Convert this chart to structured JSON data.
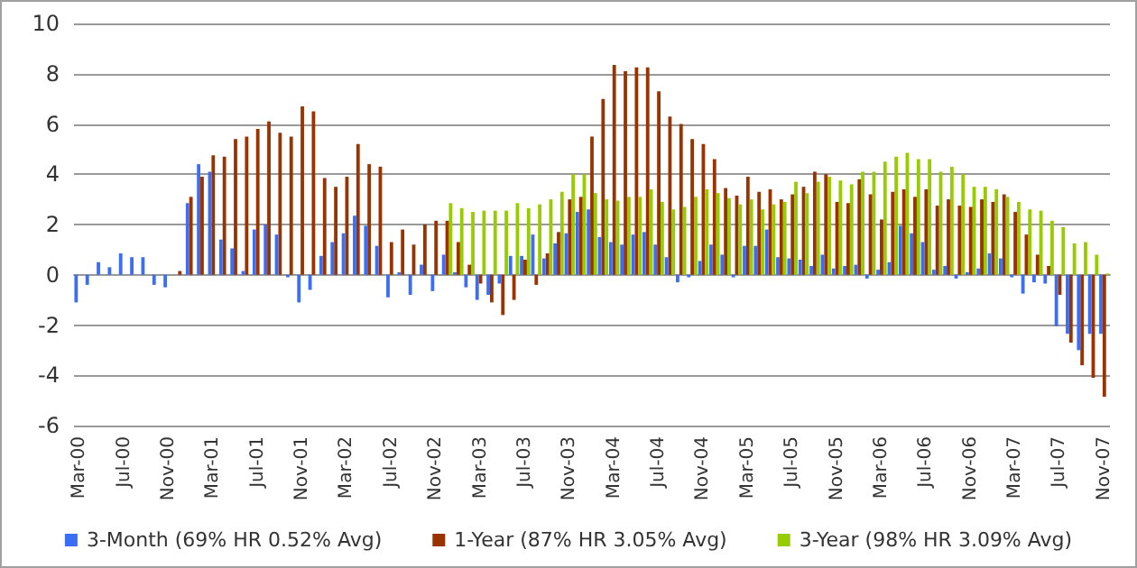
{
  "chart_data": {
    "type": "bar",
    "categories": [
      "Mar-00",
      null,
      null,
      null,
      "Jul-00",
      null,
      null,
      null,
      "Nov-00",
      null,
      null,
      null,
      "Mar-01",
      null,
      null,
      null,
      "Jul-01",
      null,
      null,
      null,
      "Nov-01",
      null,
      null,
      null,
      "Mar-02",
      null,
      null,
      null,
      "Jul-02",
      null,
      null,
      null,
      "Nov-02",
      null,
      null,
      null,
      "Mar-03",
      null,
      null,
      null,
      "Jul-03",
      null,
      null,
      null,
      "Nov-03",
      null,
      null,
      null,
      "Mar-04",
      null,
      null,
      null,
      "Jul-04",
      null,
      null,
      null,
      "Nov-04",
      null,
      null,
      null,
      "Mar-05",
      null,
      null,
      null,
      "Jul-05",
      null,
      null,
      null,
      "Nov-05",
      null,
      null,
      null,
      "Mar-06",
      null,
      null,
      null,
      "Jul-06",
      null,
      null,
      null,
      "Nov-06",
      null,
      null,
      null,
      "Mar-07",
      null,
      null,
      null,
      "Jul-07",
      null,
      null,
      null,
      "Nov-07"
    ],
    "series": [
      {
        "name": "3-Month (69% HR 0.52% Avg)",
        "color": "#3b6ef5",
        "values": [
          -1.1,
          -0.4,
          0.5,
          0.3,
          0.85,
          0.7,
          0.7,
          -0.4,
          -0.5,
          0,
          2.85,
          4.4,
          4.1,
          1.4,
          1.05,
          0.15,
          1.8,
          2.0,
          1.6,
          -0.1,
          -1.1,
          -0.6,
          0.75,
          1.3,
          1.65,
          2.35,
          1.95,
          1.15,
          -0.9,
          0.1,
          -0.8,
          0.4,
          -0.65,
          0.8,
          0.1,
          -0.5,
          -1.0,
          -0.8,
          -0.35,
          0.75,
          0.75,
          1.6,
          0.65,
          1.25,
          1.65,
          2.5,
          2.6,
          1.5,
          1.3,
          1.2,
          1.6,
          1.7,
          1.2,
          0.7,
          -0.3,
          -0.1,
          0.55,
          1.2,
          0.8,
          -0.1,
          1.15,
          1.15,
          1.8,
          0.7,
          0.65,
          0.6,
          0.35,
          0.8,
          0.25,
          0.35,
          0.4,
          -0.15,
          0.2,
          0.5,
          1.95,
          1.65,
          1.3,
          0.2,
          0.35,
          -0.15,
          0.1,
          0.25,
          0.85,
          0.65,
          -0.1,
          -0.75,
          -0.3,
          -0.35,
          -2.05,
          -2.35,
          -3.0,
          -2.35,
          -2.35
        ]
      },
      {
        "name": "1-Year (87% HR 3.05% Avg)",
        "color": "#993300",
        "values": [
          null,
          null,
          null,
          null,
          null,
          null,
          null,
          null,
          null,
          0.15,
          3.1,
          3.9,
          4.75,
          4.7,
          5.4,
          5.5,
          5.8,
          6.1,
          5.65,
          5.5,
          6.7,
          6.5,
          3.85,
          3.5,
          3.9,
          5.2,
          4.4,
          4.3,
          1.3,
          1.8,
          1.2,
          2.0,
          2.15,
          2.15,
          1.3,
          0.4,
          -0.35,
          -1.1,
          -1.6,
          -1.0,
          0.6,
          -0.4,
          0.85,
          1.7,
          3.0,
          3.1,
          5.5,
          7.0,
          8.35,
          8.1,
          8.25,
          8.25,
          7.3,
          6.3,
          6.0,
          5.4,
          5.2,
          4.6,
          3.45,
          3.15,
          3.9,
          3.3,
          3.4,
          3.0,
          3.2,
          3.5,
          4.1,
          4.0,
          2.9,
          2.85,
          3.8,
          3.2,
          2.2,
          3.3,
          3.4,
          3.1,
          3.4,
          2.75,
          3.0,
          2.75,
          2.7,
          3.0,
          2.9,
          3.2,
          2.5,
          1.6,
          0.8,
          0.35,
          -0.8,
          -2.7,
          -3.6,
          -4.1,
          -4.85
        ]
      },
      {
        "name": "3-Year (98% HR 3.09% Avg)",
        "color": "#99cc00",
        "values": [
          null,
          null,
          null,
          null,
          null,
          null,
          null,
          null,
          null,
          null,
          null,
          null,
          null,
          null,
          null,
          null,
          null,
          null,
          null,
          null,
          null,
          null,
          null,
          null,
          null,
          null,
          null,
          null,
          null,
          null,
          null,
          null,
          null,
          2.85,
          2.65,
          2.5,
          2.55,
          2.55,
          2.55,
          2.85,
          2.65,
          2.8,
          3.0,
          3.3,
          4.0,
          4.0,
          3.25,
          3.0,
          2.95,
          3.1,
          3.1,
          3.4,
          2.9,
          2.6,
          2.7,
          3.1,
          3.4,
          3.25,
          3.05,
          2.8,
          3.0,
          2.6,
          2.8,
          2.9,
          3.7,
          3.25,
          3.7,
          3.9,
          3.75,
          3.6,
          4.1,
          4.1,
          4.5,
          4.7,
          4.85,
          4.6,
          4.6,
          4.1,
          4.3,
          4.0,
          3.5,
          3.5,
          3.4,
          3.1,
          2.9,
          2.6,
          2.55,
          2.15,
          1.9,
          1.25,
          1.3,
          0.8,
          0.05
        ]
      }
    ],
    "ylim": [
      -6,
      10
    ],
    "yticks": [
      -6,
      -4,
      -2,
      0,
      2,
      4,
      6,
      8,
      10
    ],
    "grid": "y",
    "legend": "bottom"
  }
}
